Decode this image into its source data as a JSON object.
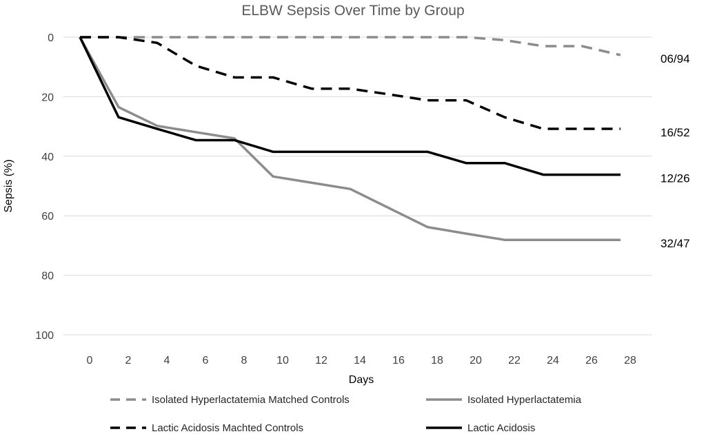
{
  "chart_data": {
    "type": "line",
    "title": "ELBW Sepsis Over Time by Group",
    "xlabel": "Days",
    "ylabel": "Sepsis (%)",
    "x_ticks": [
      "0",
      "2",
      "4",
      "6",
      "8",
      "10",
      "12",
      "14",
      "16",
      "18",
      "20",
      "22",
      "24",
      "26",
      "28"
    ],
    "y_ticks": [
      "0",
      "20",
      "40",
      "60",
      "80",
      "100"
    ],
    "ylim": [
      0,
      100
    ],
    "y_inverted": true,
    "grid": "horizontal",
    "series": [
      {
        "name": "Isolated Hyperlactatemia Matched Controls",
        "color": "#8c8c8c",
        "dash": "dashed",
        "end_label": "06/94",
        "values": [
          0,
          0,
          0,
          0,
          0,
          0,
          0,
          0,
          0,
          0,
          0,
          1,
          3,
          3,
          6
        ]
      },
      {
        "name": "Isolated Hyperlactatemia",
        "color": "#8c8c8c",
        "dash": "solid",
        "end_label": "32/47",
        "values": [
          0,
          23.5,
          29.8,
          31.9,
          34,
          46.8,
          48.9,
          51,
          57.4,
          63.8,
          66,
          68.1,
          68.1,
          68.1,
          68.1
        ]
      },
      {
        "name": "Lactic Acidosis Machted Controls",
        "color": "#000000",
        "dash": "dashed",
        "end_label": "16/52",
        "values": [
          0,
          0,
          1.9,
          9.6,
          13.5,
          13.5,
          17.3,
          17.3,
          19.2,
          21.2,
          21.2,
          26.9,
          30.8,
          30.8,
          30.8
        ]
      },
      {
        "name": "Lactic Acidosis",
        "color": "#000000",
        "dash": "solid",
        "end_label": "12/26",
        "values": [
          0,
          26.9,
          30.8,
          34.6,
          34.6,
          38.5,
          38.5,
          38.5,
          38.5,
          38.5,
          42.3,
          42.3,
          46.2,
          46.2,
          46.2
        ]
      }
    ],
    "legend": {
      "placement": "bottom",
      "order": [
        0,
        1,
        2,
        3
      ]
    }
  }
}
